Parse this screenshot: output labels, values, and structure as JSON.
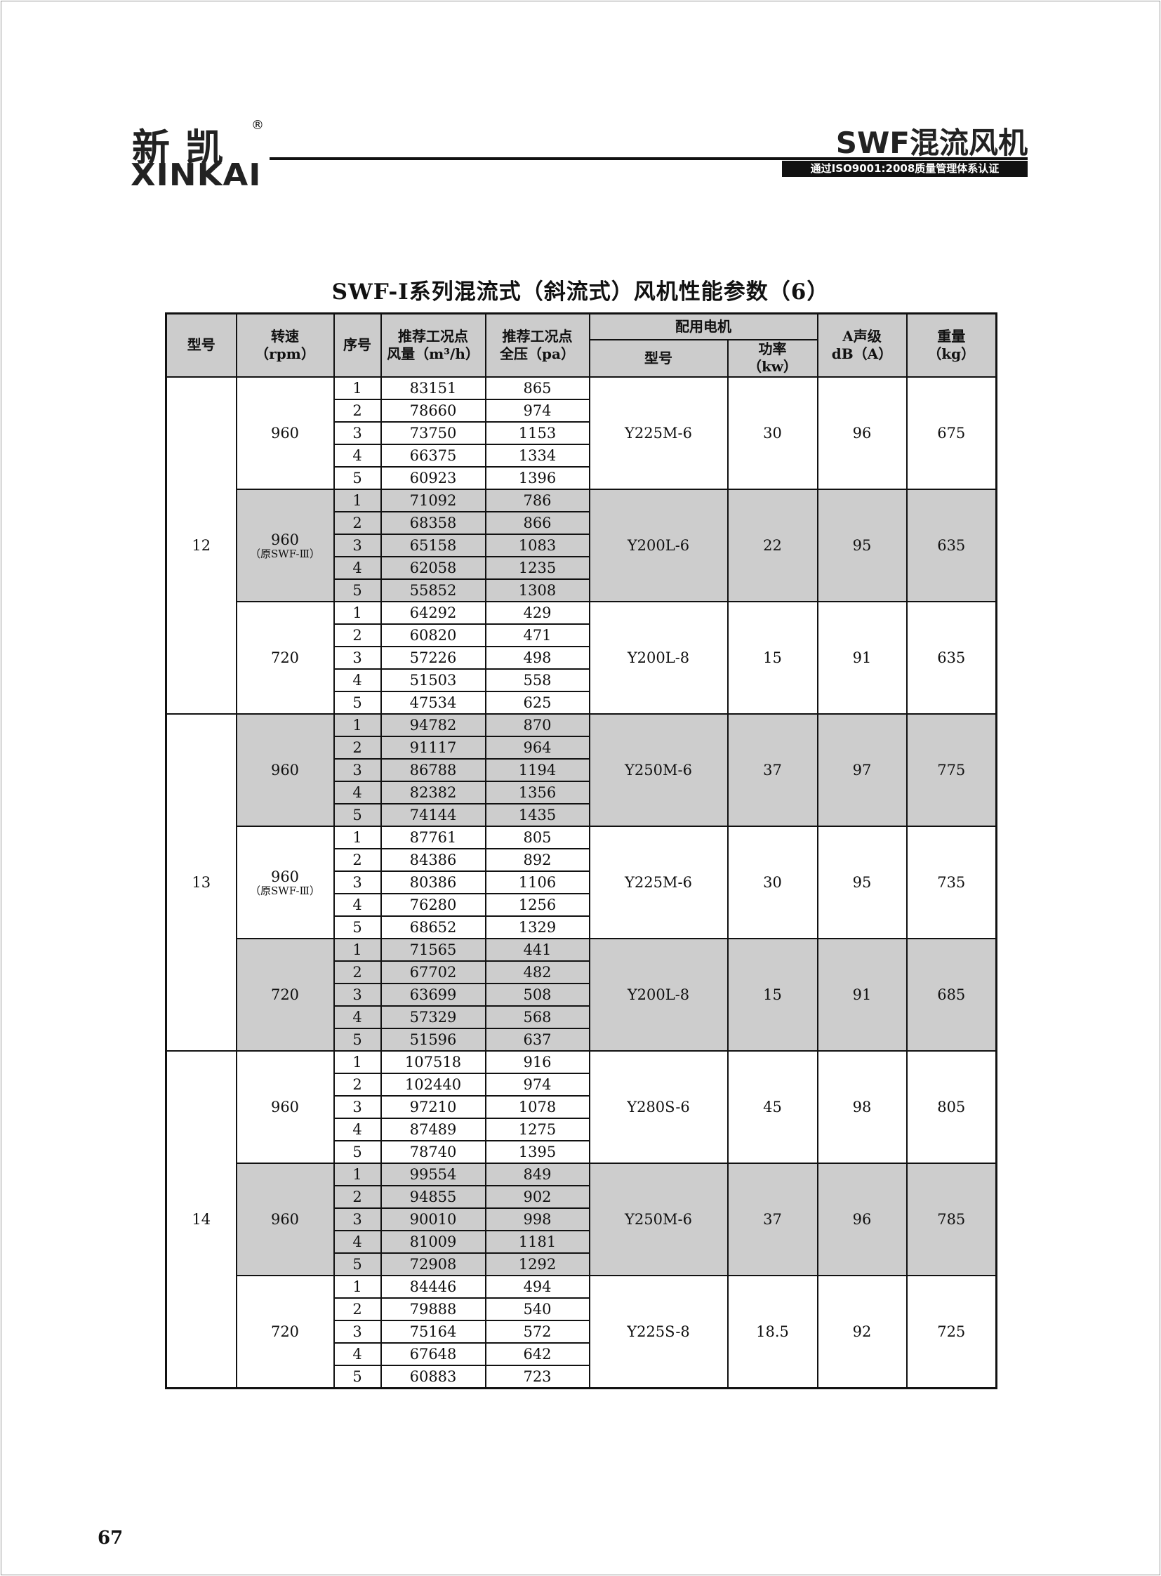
{
  "header": {
    "logo_cn": "新凯",
    "logo_reg": "®",
    "logo_en": "XINKAI",
    "product_title": "SWF混流风机",
    "certification": "通过ISO9001:2008质量管理体系认证"
  },
  "table_title": "SWF-Ⅰ系列混流式（斜流式）风机性能参数（6）",
  "columns": {
    "model": "型号",
    "speed": "转速",
    "speed_unit": "（rpm）",
    "seq": "序号",
    "flow": "推荐工况点",
    "flow_sub": "风量（m³/h）",
    "pressure": "推荐工况点",
    "pressure_sub": "全压（pa）",
    "motor_group": "配用电机",
    "motor_model": "型号",
    "motor_power": "功率",
    "motor_power_unit": "（kw）",
    "noise": "A声级",
    "noise_unit": "dB（A）",
    "weight": "重量",
    "weight_unit": "（kg）"
  },
  "shade_color": "#cdcdcd",
  "groups": [
    {
      "model": "12",
      "sections": [
        {
          "rpm": "960",
          "note": "",
          "shaded": false,
          "motor": "Y225M-6",
          "power": "30",
          "noise": "96",
          "weight": "675",
          "points": [
            [
              "1",
              "83151",
              "865"
            ],
            [
              "2",
              "78660",
              "974"
            ],
            [
              "3",
              "73750",
              "1153"
            ],
            [
              "4",
              "66375",
              "1334"
            ],
            [
              "5",
              "60923",
              "1396"
            ]
          ]
        },
        {
          "rpm": "960",
          "note": "（原SWF-Ⅲ）",
          "shaded": true,
          "motor": "Y200L-6",
          "power": "22",
          "noise": "95",
          "weight": "635",
          "points": [
            [
              "1",
              "71092",
              "786"
            ],
            [
              "2",
              "68358",
              "866"
            ],
            [
              "3",
              "65158",
              "1083"
            ],
            [
              "4",
              "62058",
              "1235"
            ],
            [
              "5",
              "55852",
              "1308"
            ]
          ]
        },
        {
          "rpm": "720",
          "note": "",
          "shaded": false,
          "motor": "Y200L-8",
          "power": "15",
          "noise": "91",
          "weight": "635",
          "points": [
            [
              "1",
              "64292",
              "429"
            ],
            [
              "2",
              "60820",
              "471"
            ],
            [
              "3",
              "57226",
              "498"
            ],
            [
              "4",
              "51503",
              "558"
            ],
            [
              "5",
              "47534",
              "625"
            ]
          ]
        }
      ]
    },
    {
      "model": "13",
      "sections": [
        {
          "rpm": "960",
          "note": "",
          "shaded": true,
          "motor": "Y250M-6",
          "power": "37",
          "noise": "97",
          "weight": "775",
          "points": [
            [
              "1",
              "94782",
              "870"
            ],
            [
              "2",
              "91117",
              "964"
            ],
            [
              "3",
              "86788",
              "1194"
            ],
            [
              "4",
              "82382",
              "1356"
            ],
            [
              "5",
              "74144",
              "1435"
            ]
          ]
        },
        {
          "rpm": "960",
          "note": "（原SWF-Ⅲ）",
          "shaded": false,
          "motor": "Y225M-6",
          "power": "30",
          "noise": "95",
          "weight": "735",
          "points": [
            [
              "1",
              "87761",
              "805"
            ],
            [
              "2",
              "84386",
              "892"
            ],
            [
              "3",
              "80386",
              "1106"
            ],
            [
              "4",
              "76280",
              "1256"
            ],
            [
              "5",
              "68652",
              "1329"
            ]
          ]
        },
        {
          "rpm": "720",
          "note": "",
          "shaded": true,
          "motor": "Y200L-8",
          "power": "15",
          "noise": "91",
          "weight": "685",
          "points": [
            [
              "1",
              "71565",
              "441"
            ],
            [
              "2",
              "67702",
              "482"
            ],
            [
              "3",
              "63699",
              "508"
            ],
            [
              "4",
              "57329",
              "568"
            ],
            [
              "5",
              "51596",
              "637"
            ]
          ]
        }
      ]
    },
    {
      "model": "14",
      "sections": [
        {
          "rpm": "960",
          "note": "",
          "shaded": false,
          "motor": "Y280S-6",
          "power": "45",
          "noise": "98",
          "weight": "805",
          "points": [
            [
              "1",
              "107518",
              "916"
            ],
            [
              "2",
              "102440",
              "974"
            ],
            [
              "3",
              "97210",
              "1078"
            ],
            [
              "4",
              "87489",
              "1275"
            ],
            [
              "5",
              "78740",
              "1395"
            ]
          ]
        },
        {
          "rpm": "960",
          "note": "",
          "shaded": true,
          "motor": "Y250M-6",
          "power": "37",
          "noise": "96",
          "weight": "785",
          "points": [
            [
              "1",
              "99554",
              "849"
            ],
            [
              "2",
              "94855",
              "902"
            ],
            [
              "3",
              "90010",
              "998"
            ],
            [
              "4",
              "81009",
              "1181"
            ],
            [
              "5",
              "72908",
              "1292"
            ]
          ]
        },
        {
          "rpm": "720",
          "note": "",
          "shaded": false,
          "motor": "Y225S-8",
          "power": "18.5",
          "noise": "92",
          "weight": "725",
          "points": [
            [
              "1",
              "84446",
              "494"
            ],
            [
              "2",
              "79888",
              "540"
            ],
            [
              "3",
              "75164",
              "572"
            ],
            [
              "4",
              "67648",
              "642"
            ],
            [
              "5",
              "60883",
              "723"
            ]
          ]
        }
      ]
    }
  ],
  "page_number": "67"
}
